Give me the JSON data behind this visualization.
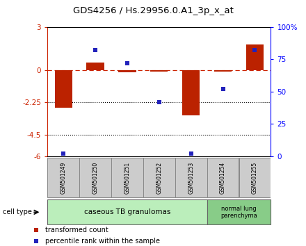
{
  "title": "GDS4256 / Hs.29956.0.A1_3p_x_at",
  "samples": [
    "GSM501249",
    "GSM501250",
    "GSM501251",
    "GSM501252",
    "GSM501253",
    "GSM501254",
    "GSM501255"
  ],
  "transformed_count": [
    -2.6,
    0.55,
    -0.15,
    -0.12,
    -3.15,
    -0.12,
    1.8
  ],
  "percentile_rank": [
    2,
    82,
    72,
    42,
    2,
    52,
    82
  ],
  "ylim_left": [
    -6,
    3
  ],
  "ylim_right": [
    0,
    100
  ],
  "yticks_left": [
    -6,
    -4.5,
    -2.25,
    0,
    3
  ],
  "yticks_right": [
    0,
    25,
    50,
    75,
    100
  ],
  "ytick_labels_left": [
    "-6",
    "-4.5",
    "-2.25",
    "0",
    "3"
  ],
  "ytick_labels_right": [
    "0",
    "25",
    "50",
    "75",
    "100%"
  ],
  "dotted_lines": [
    -2.25,
    -4.5
  ],
  "bar_color": "#BB2200",
  "dot_color": "#2222BB",
  "dashed_line_color": "#CC2200",
  "group1_label": "caseous TB granulomas",
  "group2_label": "normal lung\nparenchyma",
  "group1_color": "#BBEEBB",
  "group2_color": "#88CC88",
  "cell_type_label": "cell type",
  "legend_bar_label": "transformed count",
  "legend_dot_label": "percentile rank within the sample",
  "bg_color": "#FFFFFF",
  "sample_box_color": "#CCCCCC",
  "n_group1": 5,
  "n_group2": 2,
  "bar_width": 0.55
}
